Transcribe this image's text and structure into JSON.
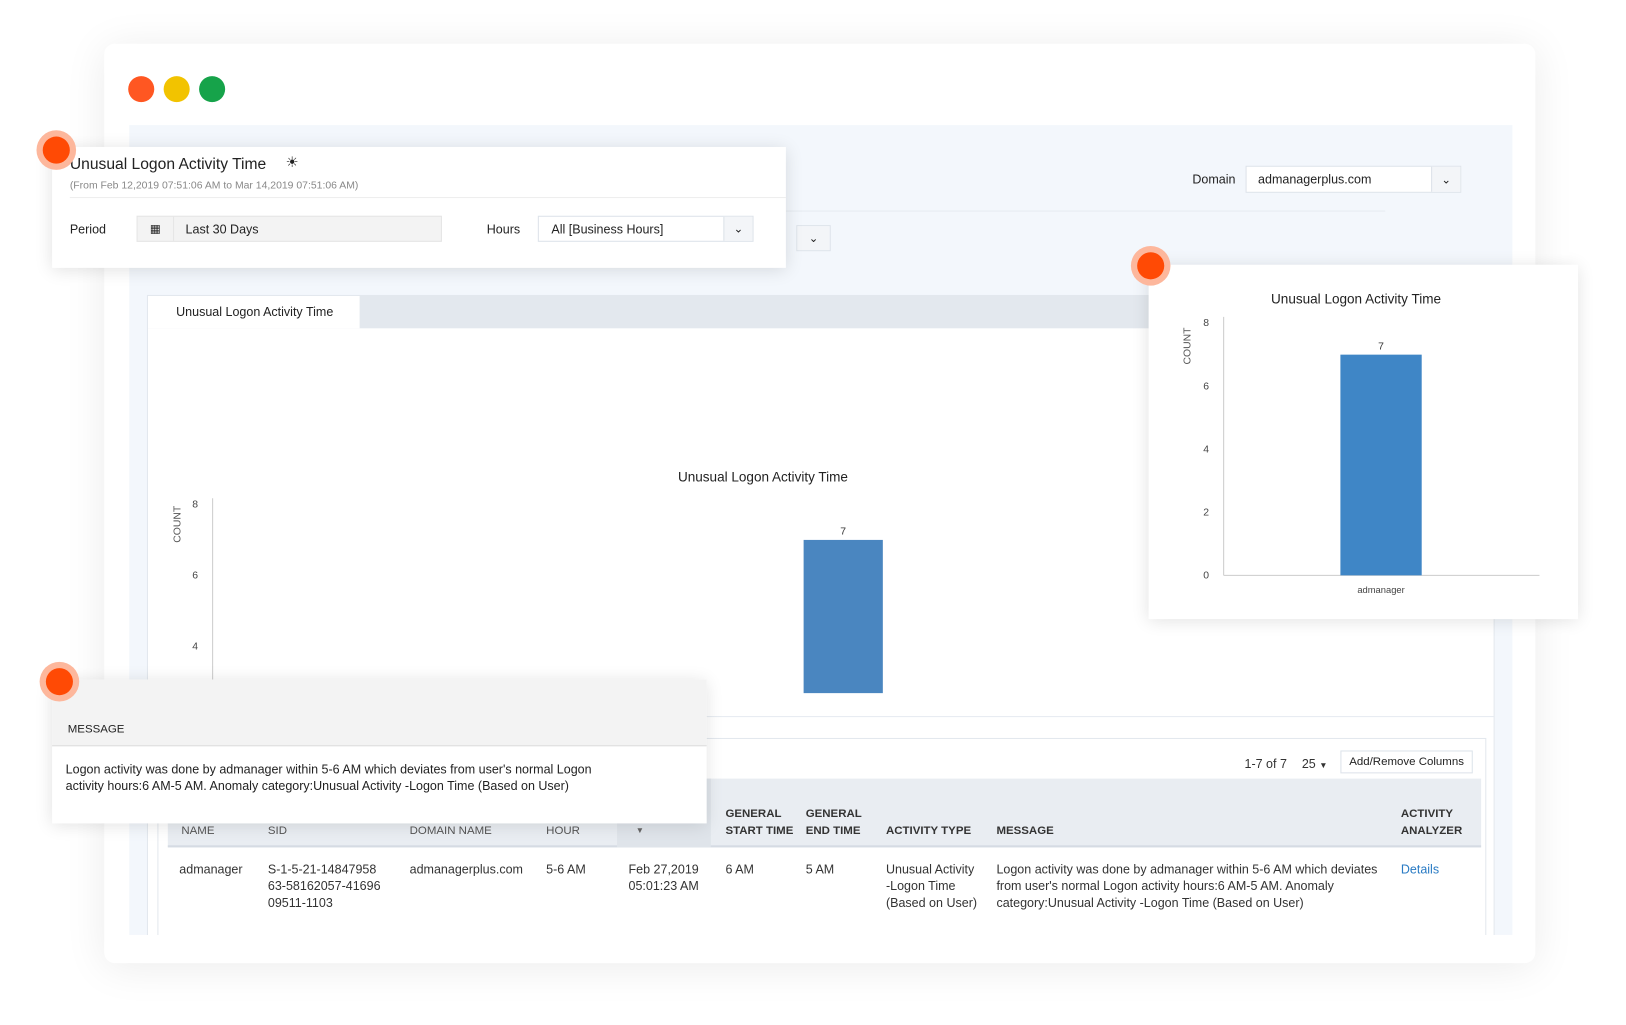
{
  "window_controls": {
    "close": "#ff5722",
    "minimize": "#f2c300",
    "maximize": "#16a34a"
  },
  "filter_popup": {
    "title": "Unusual Logon Activity Time",
    "title_icon": "bulb-icon",
    "subtitle": "(From Feb 12,2019 07:51:06 AM to Mar 14,2019 07:51:06 AM)",
    "period_label": "Period",
    "period_icon": "calendar-icon",
    "period_value": "Last 30 Days",
    "hours_label": "Hours",
    "hours_value": "All [Business Hours]"
  },
  "domain": {
    "label": "Domain",
    "value": "admanagerplus.com"
  },
  "tab": {
    "label": "Unusual Logon Activity Time"
  },
  "chart_data": [
    {
      "type": "bar",
      "title": "Unusual Logon Activity Time",
      "ylabel": "COUNT",
      "xlabel": "",
      "categories": [
        "admanager"
      ],
      "values": [
        7
      ],
      "ylim": [
        0,
        8
      ],
      "yticks": [
        0,
        2,
        4,
        6,
        8
      ],
      "data_labels": true,
      "color": "#4a86c0"
    },
    {
      "type": "bar",
      "title": "Unusual Logon Activity Time",
      "ylabel": "COUNT",
      "xlabel": "",
      "categories": [
        "admanager"
      ],
      "values": [
        7
      ],
      "ylim": [
        0,
        8
      ],
      "yticks": [
        0,
        2,
        4,
        6,
        8
      ],
      "data_labels": true,
      "color": "#3f86c6"
    }
  ],
  "message_popup": {
    "header": "MESSAGE",
    "text": "Logon activity was done by admanager within 5-6 AM which deviates from user's normal Logon activity hours:6 AM-5 AM. Anomaly category:Unusual Activity -Logon Time (Based on User)"
  },
  "table": {
    "pagination": "1-7 of 7",
    "page_size": "25",
    "add_remove": "Add/Remove Columns",
    "columns": [
      "NAME",
      "SID",
      "DOMAIN NAME",
      "HOUR",
      "",
      "GENERAL START TIME",
      "GENERAL END TIME",
      "ACTIVITY TYPE",
      "MESSAGE",
      "ACTIVITY ANALYZER"
    ],
    "rows": [
      [
        "admanager",
        "S-1-5-21-1484795863-58162057-4169609511-1103",
        "admanagerplus.com",
        "5-6 AM",
        "Feb 27,2019 05:01:23 AM",
        "6 AM",
        "5 AM",
        "Unusual Activity -Logon Time (Based on User)",
        "Logon activity was done by admanager within 5-6 AM which deviates from user's normal Logon activity hours:6 AM-5 AM. Anomaly category:Unusual Activity -Logon Time (Based on User)",
        "Details"
      ]
    ]
  }
}
